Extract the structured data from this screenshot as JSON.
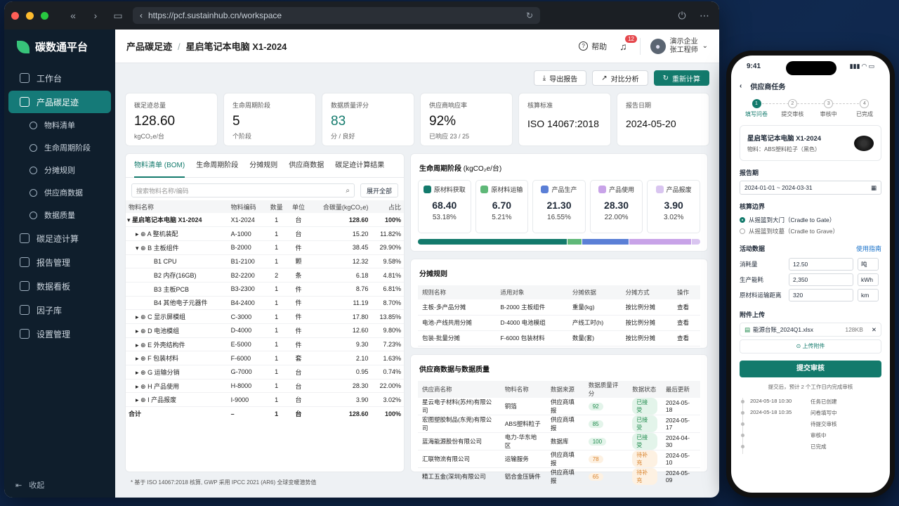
{
  "browser": {
    "url": "https://pcf.sustainhub.cn/workspace"
  },
  "app": {
    "name": "碳数通平台"
  },
  "sidebar": {
    "items": [
      {
        "label": "工作台",
        "icon": "home-icon"
      },
      {
        "label": "产品碳足迹",
        "icon": "footprint-icon"
      },
      {
        "label": "物料清单",
        "icon": "box-icon"
      },
      {
        "label": "生命周期阶段",
        "icon": "cycle-icon"
      },
      {
        "label": "分摊规则",
        "icon": "split-icon"
      },
      {
        "label": "供应商数据",
        "icon": "supplier-icon"
      },
      {
        "label": "数据质量",
        "icon": "quality-icon"
      },
      {
        "label": "碳足迹计算",
        "icon": "calc-icon"
      },
      {
        "label": "报告管理",
        "icon": "report-icon"
      },
      {
        "label": "数据看板",
        "icon": "dashboard-icon"
      },
      {
        "label": "因子库",
        "icon": "factor-icon"
      },
      {
        "label": "设置管理",
        "icon": "gear-icon"
      }
    ],
    "collapse": "收起"
  },
  "header": {
    "section": "产品碳足迹",
    "product": "星启笔记本电脑 X1-2024",
    "help": "帮助",
    "notif_count": "12",
    "company": "演示企业",
    "user": "张工程师"
  },
  "actions": {
    "export": "导出报告",
    "compare": "对比分析",
    "recalc": "重新计算"
  },
  "stats": [
    {
      "label": "碳足迹总量",
      "value": "128.60",
      "sub": "kgCO₂e/台"
    },
    {
      "label": "生命周期阶段",
      "value": "5",
      "sub": "个阶段"
    },
    {
      "label": "数据质量评分",
      "value": "83",
      "sub": "分 / 良好"
    },
    {
      "label": "供应商响应率",
      "value": "92%",
      "sub": "已响应 23 / 25"
    },
    {
      "label": "核算标准",
      "value": "ISO 14067:2018",
      "sub": ""
    },
    {
      "label": "报告日期",
      "value": "2024-05-20",
      "sub": ""
    }
  ],
  "bom": {
    "tabs": [
      "物料清单 (BOM)",
      "生命周期阶段",
      "分摊规则",
      "供应商数据",
      "碳足迹计算结果"
    ],
    "search_placeholder": "搜索物料名称/编码",
    "expand": "展开全部",
    "headers": [
      "物料名称",
      "物料编码",
      "数量",
      "单位",
      "合碳量(kgCO₂e)",
      "占比"
    ],
    "rows": [
      {
        "name": "星启笔记本电脑 X1-2024",
        "code": "X1-2024",
        "qty": "1",
        "unit": "台",
        "co2": "128.60",
        "pct": "100%",
        "lvl": 0
      },
      {
        "name": "A 整机装配",
        "code": "A-1000",
        "qty": "1",
        "unit": "台",
        "co2": "15.20",
        "pct": "11.82%",
        "lvl": 1
      },
      {
        "name": "B 主板组件",
        "code": "B-2000",
        "qty": "1",
        "unit": "件",
        "co2": "38.45",
        "pct": "29.90%",
        "lvl": 1
      },
      {
        "name": "B1 CPU",
        "code": "B1-2100",
        "qty": "1",
        "unit": "颗",
        "co2": "12.32",
        "pct": "9.58%",
        "lvl": 2
      },
      {
        "name": "B2 内存(16GB)",
        "code": "B2-2200",
        "qty": "2",
        "unit": "条",
        "co2": "6.18",
        "pct": "4.81%",
        "lvl": 2
      },
      {
        "name": "B3 主板PCB",
        "code": "B3-2300",
        "qty": "1",
        "unit": "件",
        "co2": "8.76",
        "pct": "6.81%",
        "lvl": 2
      },
      {
        "name": "B4 其他电子元器件",
        "code": "B4-2400",
        "qty": "1",
        "unit": "件",
        "co2": "11.19",
        "pct": "8.70%",
        "lvl": 2
      },
      {
        "name": "C 显示屏模组",
        "code": "C-3000",
        "qty": "1",
        "unit": "件",
        "co2": "17.80",
        "pct": "13.85%",
        "lvl": 1
      },
      {
        "name": "D 电池模组",
        "code": "D-4000",
        "qty": "1",
        "unit": "件",
        "co2": "12.60",
        "pct": "9.80%",
        "lvl": 1
      },
      {
        "name": "E 外壳结构件",
        "code": "E-5000",
        "qty": "1",
        "unit": "件",
        "co2": "9.30",
        "pct": "7.23%",
        "lvl": 1
      },
      {
        "name": "F 包装材料",
        "code": "F-6000",
        "qty": "1",
        "unit": "套",
        "co2": "2.10",
        "pct": "1.63%",
        "lvl": 1
      },
      {
        "name": "G 运输分销",
        "code": "G-7000",
        "qty": "1",
        "unit": "台",
        "co2": "0.95",
        "pct": "0.74%",
        "lvl": 1
      },
      {
        "name": "H 产品使用",
        "code": "H-8000",
        "qty": "1",
        "unit": "台",
        "co2": "28.30",
        "pct": "22.00%",
        "lvl": 1
      },
      {
        "name": "I 产品报废",
        "code": "I-9000",
        "qty": "1",
        "unit": "台",
        "co2": "3.90",
        "pct": "3.02%",
        "lvl": 1
      }
    ],
    "total": {
      "name": "合计",
      "code": "–",
      "qty": "1",
      "unit": "台",
      "co2": "128.60",
      "pct": "100%"
    }
  },
  "lifecycle": {
    "title": "生命周期阶段",
    "unit": "(kgCO₂e/台)",
    "stages": [
      {
        "name": "原材料获取",
        "value": "68.40",
        "pct": "53.18%",
        "share": 53.18,
        "color": "#137a6c",
        "icon": "raw-material-icon"
      },
      {
        "name": "原材料运输",
        "value": "6.70",
        "pct": "5.21%",
        "share": 5.21,
        "color": "#5fb878",
        "icon": "truck-icon"
      },
      {
        "name": "产品生产",
        "value": "21.30",
        "pct": "16.55%",
        "share": 16.55,
        "color": "#5b7fd6",
        "icon": "factory-icon"
      },
      {
        "name": "产品使用",
        "value": "28.30",
        "pct": "22.00%",
        "share": 22.0,
        "color": "#c8a3e8",
        "icon": "usage-icon"
      },
      {
        "name": "产品报废",
        "value": "3.90",
        "pct": "3.02%",
        "share": 3.02,
        "color": "#d9c5f0",
        "icon": "trash-icon"
      }
    ]
  },
  "alloc": {
    "title": "分摊规则",
    "headers": [
      "规则名称",
      "适用对象",
      "分摊依据",
      "分摊方式",
      "操作"
    ],
    "rows": [
      [
        "主板-多产品分摊",
        "B-2000 主板组件",
        "重量(kg)",
        "按比例分摊",
        "查看"
      ],
      [
        "电池-产线共用分摊",
        "D-4000 电池模组",
        "产线工时(h)",
        "按比例分摊",
        "查看"
      ],
      [
        "包装-批量分摊",
        "F-6000 包装材料",
        "数量(套)",
        "按比例分摊",
        "查看"
      ]
    ]
  },
  "supplier": {
    "title": "供应商数据与数据质量",
    "headers": [
      "供应商名称",
      "物料名称",
      "数据来源",
      "数据质量评分",
      "数据状态",
      "最后更新"
    ],
    "rows": [
      {
        "name": "星云电子材料(苏州)有限公司",
        "mat": "铜箔",
        "src": "供应商填报",
        "score": "92",
        "status": "已接受",
        "date": "2024-05-18",
        "sc": "#e3f4ea",
        "st": "#1f8a4c"
      },
      {
        "name": "宏图塑胶制品(东莞)有限公司",
        "mat": "ABS塑料粒子",
        "src": "供应商填报",
        "score": "85",
        "status": "已接受",
        "date": "2024-05-17",
        "sc": "#e3f4ea",
        "st": "#1f8a4c"
      },
      {
        "name": "蓝海能源股份有限公司",
        "mat": "电力-华东地区",
        "src": "数据库",
        "score": "100",
        "status": "已接受",
        "date": "2024-04-30",
        "sc": "#e3f4ea",
        "st": "#1f8a4c"
      },
      {
        "name": "汇联物流有限公司",
        "mat": "运输服务",
        "src": "供应商填报",
        "score": "78",
        "status": "待补充",
        "date": "2024-05-10",
        "sc": "#fdf1e2",
        "st": "#d9822b"
      },
      {
        "name": "精工五金(深圳)有限公司",
        "mat": "铝合金压铸件",
        "src": "供应商填报",
        "score": "65",
        "status": "待补充",
        "date": "2024-05-09",
        "sc": "#fdf1e2",
        "st": "#d9822b"
      }
    ]
  },
  "footnote": "* 基于 ISO 14067:2018 核算, GWP 采用 IPCC 2021 (AR6) 全球变暖潜势值",
  "phone": {
    "time": "9:41",
    "title": "供应商任务",
    "steps": [
      {
        "n": "1",
        "label": "填写问卷"
      },
      {
        "n": "2",
        "label": "提交审核"
      },
      {
        "n": "3",
        "label": "审核中"
      },
      {
        "n": "4",
        "label": "已完成"
      }
    ],
    "product": "星启笔记本电脑 X1-2024",
    "material": "物料：ABS塑料粒子（黑色）",
    "period_label": "报告期",
    "period": "2024-01-01 ~ 2024-03-31",
    "boundary_label": "核算边界",
    "boundary_a": "从摇篮到大门（Cradle to Gate）",
    "boundary_b": "从摇篮到坟墓（Cradle to Grave）",
    "activity_label": "活动数据",
    "guide": "使用指南",
    "activity": [
      {
        "label": "消耗量",
        "value": "12.50",
        "unit": "吨"
      },
      {
        "label": "生产能耗",
        "value": "2,350",
        "unit": "kWh"
      },
      {
        "label": "原材料运输距离",
        "value": "320",
        "unit": "km"
      }
    ],
    "attach_label": "附件上传",
    "file": "能源台账_2024Q1.xlsx",
    "file_size": "128KB",
    "upload": "上传附件",
    "submit": "提交审核",
    "hint": "提交后，预计 2 个工作日内完成审核",
    "timeline": [
      {
        "t": "2024-05-18 10:30",
        "e": "任务已创建"
      },
      {
        "t": "2024-05-18 10:35",
        "e": "问卷填写中"
      },
      {
        "t": "",
        "e": "待提交审核"
      },
      {
        "t": "",
        "e": "审核中"
      },
      {
        "t": "",
        "e": "已完成"
      }
    ]
  }
}
